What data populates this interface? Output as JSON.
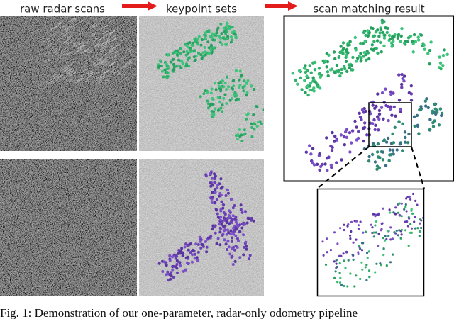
{
  "header": {
    "labels": [
      "raw radar scans",
      "keypoint sets",
      "scan matching result"
    ]
  },
  "caption": "Fig. 1: Demonstration of our one-parameter, radar-only odometry pipeline"
}
